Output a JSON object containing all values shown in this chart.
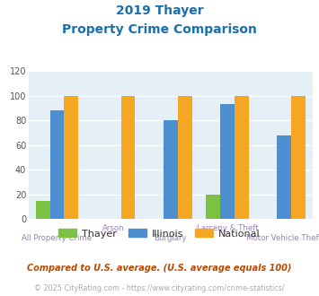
{
  "title_line1": "2019 Thayer",
  "title_line2": "Property Crime Comparison",
  "categories": [
    "All Property Crime",
    "Arson",
    "Burglary",
    "Larceny & Theft",
    "Motor Vehicle Theft"
  ],
  "thayer": [
    15,
    0,
    0,
    20,
    0
  ],
  "illinois": [
    88,
    0,
    80,
    93,
    68
  ],
  "national": [
    100,
    100,
    100,
    100,
    100
  ],
  "thayer_color": "#7bc142",
  "illinois_color": "#4d8fd1",
  "national_color": "#f5a623",
  "plot_bg": "#e4f0f5",
  "ylim": [
    0,
    120
  ],
  "yticks": [
    0,
    20,
    40,
    60,
    80,
    100,
    120
  ],
  "xlabel_color": "#9b7fbd",
  "title_color": "#1a6faf",
  "legend_label_color": "#333333",
  "legend_labels": [
    "Thayer",
    "Illinois",
    "National"
  ],
  "footnote1": "Compared to U.S. average. (U.S. average equals 100)",
  "footnote2": "© 2025 CityRating.com - https://www.cityrating.com/crime-statistics/",
  "footnote1_color": "#b84a00",
  "footnote2_color": "#aaaaaa",
  "footnote2_link_color": "#4472c4",
  "bar_width": 0.25
}
